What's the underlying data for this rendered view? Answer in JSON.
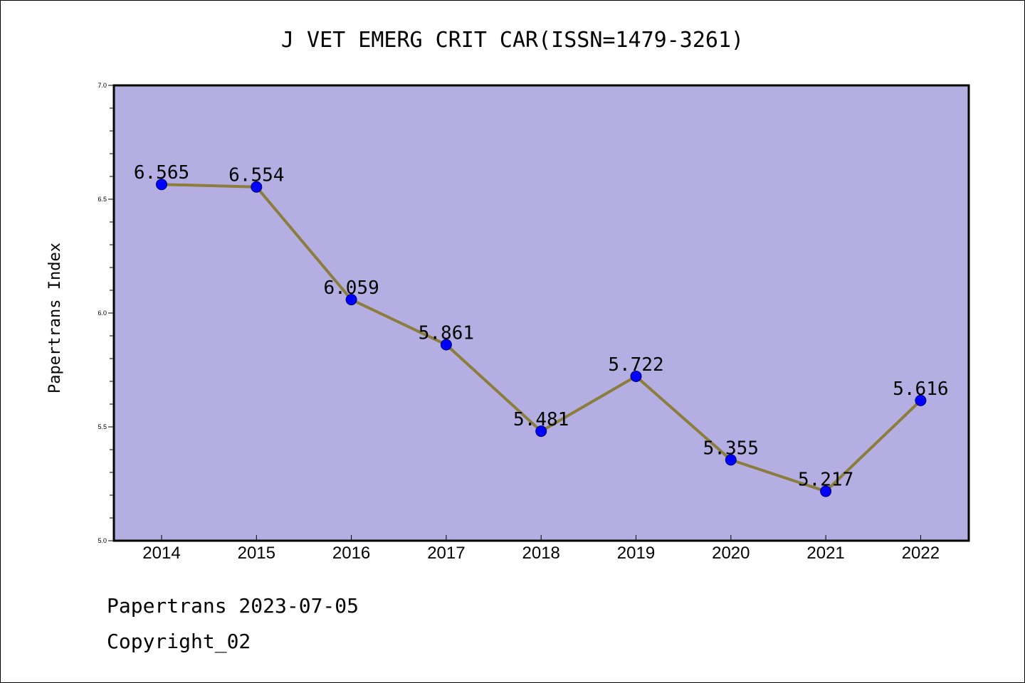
{
  "chart_data": {
    "type": "line",
    "title": "J VET EMERG CRIT CAR(ISSN=1479-3261)",
    "xlabel": "",
    "ylabel": "Papertrans Index",
    "categories": [
      "2014",
      "2015",
      "2016",
      "2017",
      "2018",
      "2019",
      "2020",
      "2021",
      "2022"
    ],
    "series": [
      {
        "values": [
          6.565,
          6.554,
          6.059,
          5.861,
          5.481,
          5.722,
          5.355,
          5.217,
          5.616
        ],
        "labels": [
          "6.565",
          "6.554",
          "6.059",
          "5.861",
          "5.481",
          "5.722",
          "5.355",
          "5.217",
          "5.616"
        ]
      }
    ],
    "ylim": [
      5.0,
      7.0
    ],
    "yticks": [
      "5.0",
      "5.5",
      "6.0",
      "6.5",
      "7.0"
    ],
    "grid": false,
    "colors": {
      "plot_background": "#b4aee2",
      "line": "#8b7d3c",
      "marker": "#0000ff"
    }
  },
  "footer": {
    "line1": "Papertrans 2023-07-05",
    "line2": "Copyright_02"
  }
}
